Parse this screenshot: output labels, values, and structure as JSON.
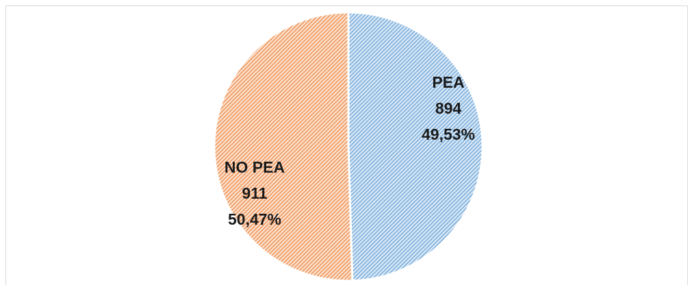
{
  "chart_data": {
    "type": "pie",
    "categories": [
      "PEA",
      "NO PEA"
    ],
    "values": [
      894,
      911
    ],
    "percentages": [
      49.53,
      50.47
    ],
    "percentage_labels": [
      "49,53%",
      "50,47%"
    ],
    "colors": [
      "#5b9bd5",
      "#ed7d31"
    ]
  }
}
